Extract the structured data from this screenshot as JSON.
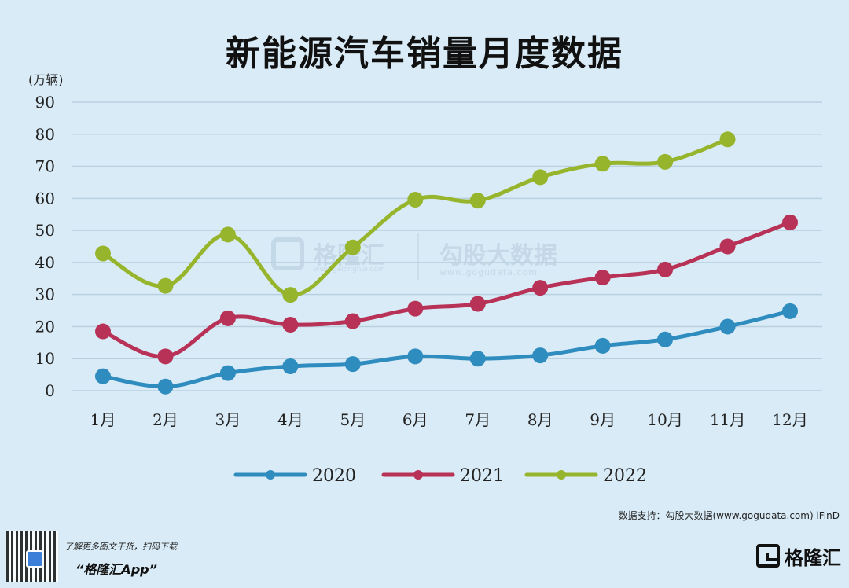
{
  "title": "新能源汽车销量月度数据",
  "unit": "(万辆)",
  "source": "数据支持：勾股大数据(www.gogudata.com)  iFinD",
  "watermark": {
    "brand_name": "格隆汇",
    "brand_url": "www.gelonghui.com",
    "partner_name": "勾股大数据",
    "partner_url": "www.gogudata.com"
  },
  "footer": {
    "line1": "了解更多图文干货，扫码下载",
    "line2": "“格隆汇App”",
    "brand": "格隆汇"
  },
  "colors": {
    "2020": "#2f8cbf",
    "2021": "#b83257",
    "2022": "#97b52c",
    "grid": "#b9d0e0",
    "background": "#d9ebf6"
  },
  "chart_data": {
    "type": "line",
    "categories": [
      "1月",
      "2月",
      "3月",
      "4月",
      "5月",
      "6月",
      "7月",
      "8月",
      "9月",
      "10月",
      "11月",
      "12月"
    ],
    "ylim": [
      0,
      90
    ],
    "yticks": [
      0,
      10,
      20,
      30,
      40,
      50,
      60,
      70,
      80,
      90
    ],
    "grid": true,
    "legend_position": "bottom-center",
    "series": [
      {
        "name": "2020",
        "values": [
          4.5,
          1.3,
          5.5,
          7.6,
          8.3,
          10.7,
          10.0,
          11.0,
          14.0,
          16.0,
          20.0,
          24.8
        ]
      },
      {
        "name": "2021",
        "values": [
          18.5,
          10.7,
          22.6,
          20.6,
          21.7,
          25.6,
          27.1,
          32.1,
          35.3,
          37.8,
          45.0,
          52.5
        ]
      },
      {
        "name": "2022",
        "values": [
          42.8,
          32.7,
          48.7,
          29.9,
          44.7,
          59.6,
          59.3,
          66.6,
          70.8,
          71.4,
          78.4,
          null
        ]
      }
    ]
  }
}
